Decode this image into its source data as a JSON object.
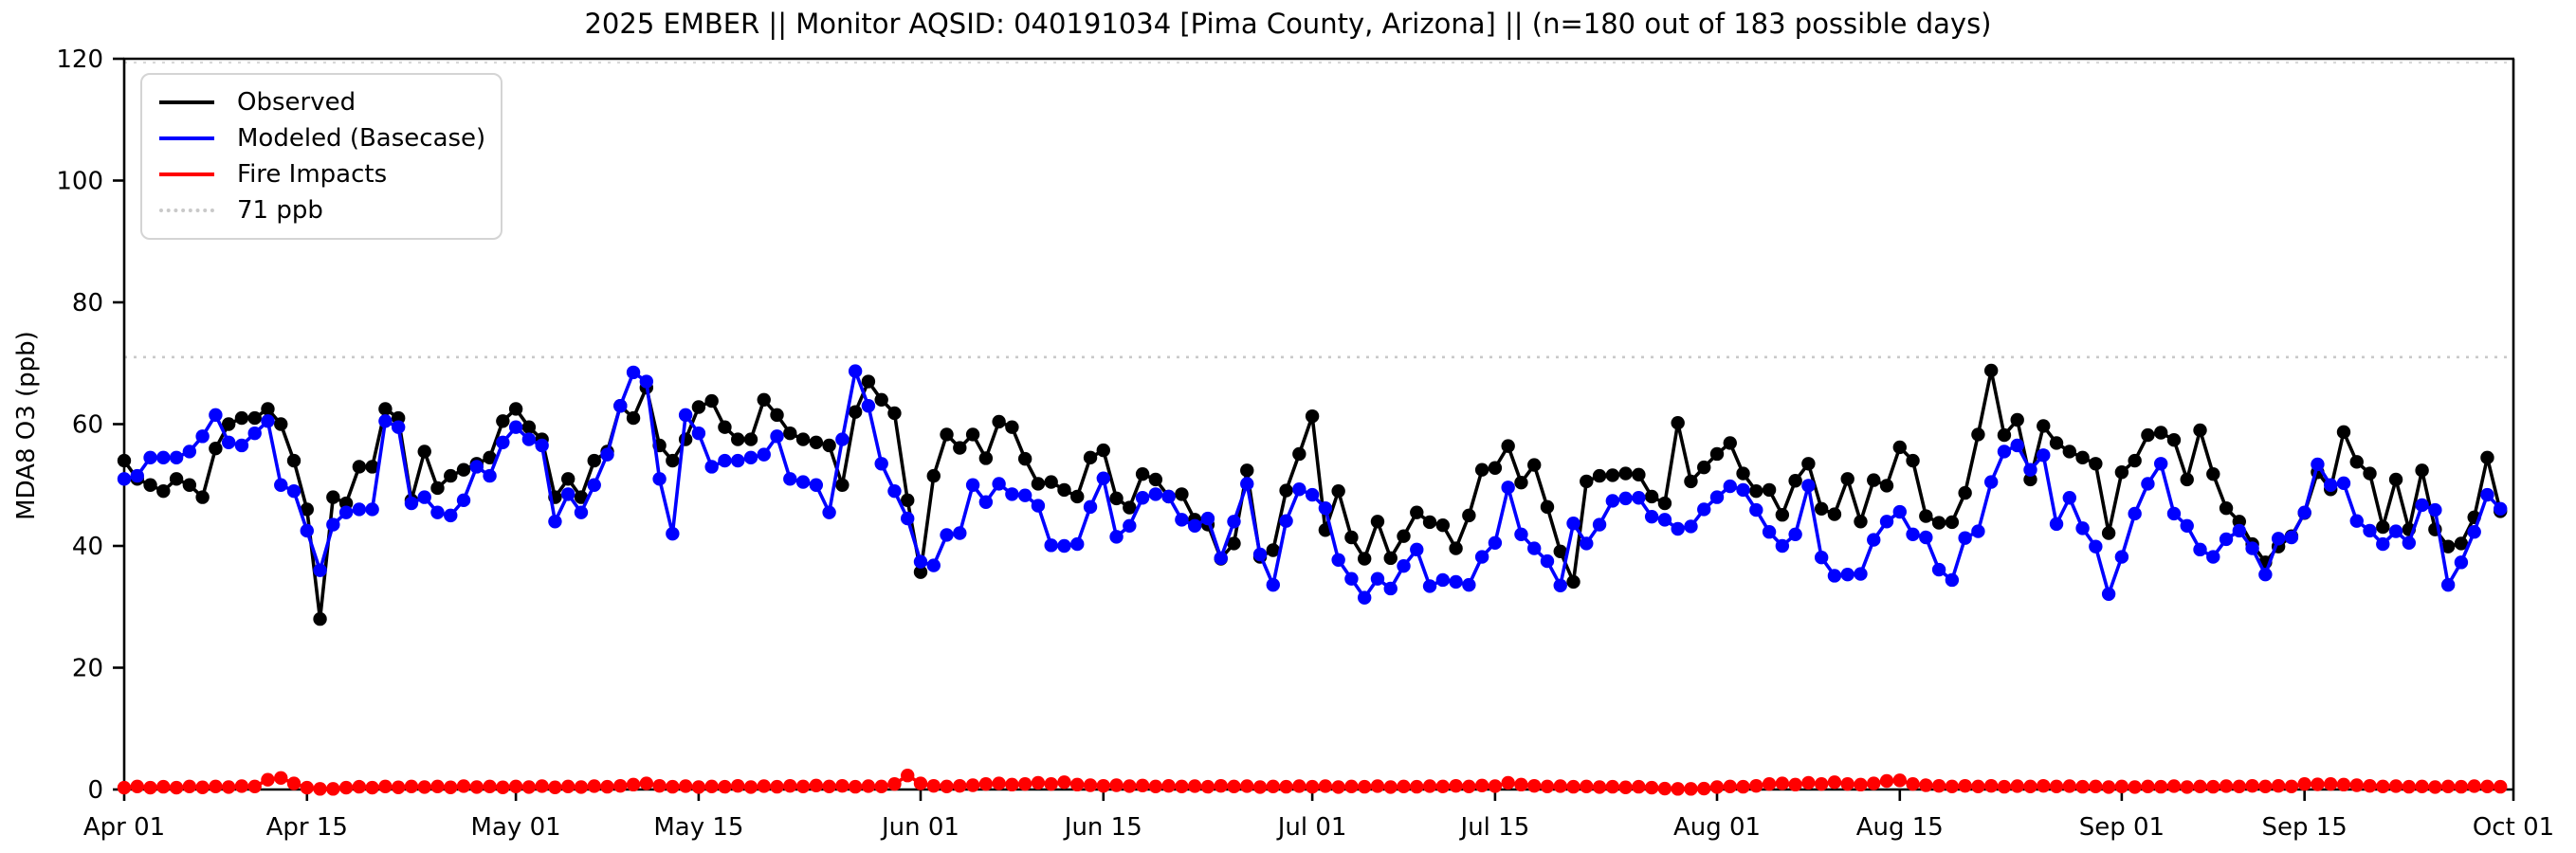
{
  "title": "2025 EMBER || Monitor AQSID: 040191034 [Pima County, Arizona] || (n=180 out of 183 possible days)",
  "legend": {
    "items": [
      {
        "label": "Observed",
        "color": "#000000",
        "style": "solid"
      },
      {
        "label": "Modeled (Basecase)",
        "color": "#0000ff",
        "style": "solid"
      },
      {
        "label": "Fire Impacts",
        "color": "#ff0000",
        "style": "solid"
      },
      {
        "label": "71 ppb",
        "color": "#c9c9c9",
        "style": "dotted"
      }
    ]
  },
  "chart_data": {
    "type": "line",
    "title": "2025 EMBER || Monitor AQSID: 040191034 [Pima County, Arizona] || (n=180 out of 183 possible days)",
    "xlabel": "",
    "ylabel": "MDA8 O3 (ppb)",
    "ylim": [
      0,
      120
    ],
    "y_ticks": [
      0,
      20,
      40,
      60,
      80,
      100,
      120
    ],
    "x_start_date": "Apr 01",
    "x_end_date": "Oct 01",
    "n_days": 183,
    "x_ticks": [
      {
        "label": "Apr 01",
        "day": 0
      },
      {
        "label": "Apr 15",
        "day": 14
      },
      {
        "label": "May 01",
        "day": 30
      },
      {
        "label": "May 15",
        "day": 44
      },
      {
        "label": "Jun 01",
        "day": 61
      },
      {
        "label": "Jun 15",
        "day": 75
      },
      {
        "label": "Jul 01",
        "day": 91
      },
      {
        "label": "Jul 15",
        "day": 105
      },
      {
        "label": "Aug 01",
        "day": 122
      },
      {
        "label": "Aug 15",
        "day": 136
      },
      {
        "label": "Sep 01",
        "day": 153
      },
      {
        "label": "Sep 15",
        "day": 167
      },
      {
        "label": "Oct 01",
        "day": 183
      }
    ],
    "reference_line": {
      "label": "71 ppb",
      "value": 71,
      "color": "#c9c9c9",
      "style": "dotted"
    },
    "grid": false,
    "legend_position": "upper left",
    "series": [
      {
        "name": "Observed",
        "color": "#000000",
        "marker": "circle",
        "values": [
          54,
          51,
          50,
          49,
          51,
          50,
          48,
          56,
          60,
          61,
          61,
          62.5,
          60,
          54,
          46,
          28,
          48,
          47,
          53,
          53,
          62.5,
          61,
          47.5,
          55.5,
          49.5,
          51.5,
          52.5,
          53.5,
          54.5,
          60.5,
          62.5,
          59.5,
          57.5,
          48,
          51,
          48,
          54,
          55.5,
          63,
          61,
          66,
          56.5,
          54,
          57.5,
          62.8,
          63.8,
          59.5,
          57.5,
          57.5,
          64,
          61.5,
          58.5,
          57.5,
          57,
          56.5,
          50,
          62,
          67,
          64,
          61.8,
          47.5,
          35.7,
          51.5,
          58.3,
          56.1,
          58.3,
          54.4,
          60.4,
          59.5,
          54.3,
          50.2,
          50.5,
          49.2,
          48.1,
          54.5,
          55.7,
          47.8,
          46.3,
          51.8,
          50.9,
          48.1,
          48.5,
          44.3,
          43.5,
          37.9,
          40.4,
          52.4,
          38.2,
          39.3,
          49.1,
          55.1,
          61.3,
          42.6,
          49,
          41.4,
          37.9,
          44,
          38,
          41.6,
          45.5,
          43.9,
          43.4,
          39.6,
          45,
          52.5,
          52.8,
          56.4,
          50.4,
          53.3,
          46.4,
          39.1,
          34.1,
          50.6,
          51.5,
          51.6,
          51.9,
          51.7,
          48.1,
          47,
          60.2,
          50.6,
          52.9,
          55.1,
          56.9,
          51.9,
          49,
          49.2,
          45.1,
          50.7,
          53.5,
          46.1,
          45.2,
          51,
          44,
          50.8,
          49.9,
          56.2,
          54,
          44.9,
          43.8,
          43.9,
          48.7,
          58.3,
          68.8,
          58.2,
          60.7,
          50.9,
          59.7,
          56.9,
          55.5,
          54.5,
          53.5,
          42.1,
          52.1,
          54,
          58.2,
          58.6,
          57.4,
          50.9,
          59,
          51.8,
          46.2,
          44,
          40.3,
          37.3,
          39.9,
          41.6,
          45.4,
          52.1,
          49.3,
          58.7,
          53.8,
          51.9,
          43.1,
          50.9,
          42.7,
          52.4,
          42.7,
          39.9,
          40.4,
          44.7,
          54.5,
          45.7
        ]
      },
      {
        "name": "Modeled (Basecase)",
        "color": "#0000ff",
        "marker": "circle",
        "values": [
          51,
          51.5,
          54.5,
          54.5,
          54.5,
          55.5,
          58,
          61.5,
          57,
          56.5,
          58.5,
          60.5,
          50,
          49,
          42.5,
          36,
          43.5,
          45.5,
          46,
          46,
          60.5,
          59.5,
          47,
          48,
          45.5,
          45,
          47.5,
          53,
          51.5,
          57,
          59.5,
          57.5,
          56.5,
          44,
          48.5,
          45.5,
          50,
          55,
          63,
          68.5,
          67,
          51,
          42,
          61.5,
          58.5,
          53,
          54,
          54,
          54.5,
          55,
          58,
          51,
          50.5,
          50,
          45.5,
          57.5,
          68.7,
          63,
          53.5,
          49,
          44.5,
          37.4,
          36.8,
          41.8,
          42.1,
          50,
          47.2,
          50.2,
          48.5,
          48.3,
          46.6,
          40.1,
          40,
          40.3,
          46.4,
          51.1,
          41.5,
          43.3,
          47.9,
          48.5,
          48.1,
          44.3,
          43.3,
          44.5,
          38,
          44,
          50.2,
          38.6,
          33.6,
          44.1,
          49.3,
          48.4,
          46.2,
          37.7,
          34.6,
          31.5,
          34.6,
          33,
          36.7,
          39.4,
          33.4,
          34.4,
          34.1,
          33.6,
          38.2,
          40.5,
          49.6,
          41.9,
          39.6,
          37.5,
          33.5,
          43.7,
          40.4,
          43.5,
          47.4,
          47.8,
          47.9,
          44.8,
          44.3,
          42.8,
          43.2,
          46,
          48,
          49.8,
          49.2,
          45.9,
          42.3,
          40,
          41.9,
          49.9,
          38.1,
          35.1,
          35.3,
          35.4,
          41,
          44,
          45.6,
          41.9,
          41.4,
          36.1,
          34.4,
          41.3,
          42.4,
          50.5,
          55.5,
          56.5,
          52.5,
          54.9,
          43.6,
          47.9,
          42.9,
          39.9,
          32.1,
          38.2,
          45.3,
          50.2,
          53.5,
          45.3,
          43.3,
          39.4,
          38.2,
          41.1,
          42.5,
          39.6,
          35.3,
          41.2,
          41.4,
          45.5,
          53.4,
          50,
          50.3,
          44.1,
          42.5,
          40.3,
          42.4,
          40.5,
          46.7,
          45.9,
          33.6,
          37.3,
          42.3,
          48.4,
          46.1
        ]
      },
      {
        "name": "Fire Impacts",
        "color": "#ff0000",
        "marker": "circle",
        "values": [
          0.3,
          0.5,
          0.3,
          0.45,
          0.3,
          0.5,
          0.35,
          0.5,
          0.4,
          0.55,
          0.5,
          1.6,
          1.9,
          1.0,
          0.3,
          0.1,
          0.1,
          0.3,
          0.45,
          0.3,
          0.5,
          0.35,
          0.5,
          0.4,
          0.5,
          0.35,
          0.55,
          0.4,
          0.5,
          0.35,
          0.5,
          0.4,
          0.55,
          0.35,
          0.5,
          0.4,
          0.55,
          0.45,
          0.6,
          0.8,
          1.0,
          0.6,
          0.45,
          0.55,
          0.4,
          0.5,
          0.45,
          0.6,
          0.4,
          0.55,
          0.45,
          0.6,
          0.5,
          0.65,
          0.5,
          0.6,
          0.45,
          0.55,
          0.5,
          0.9,
          2.3,
          1.0,
          0.6,
          0.5,
          0.6,
          0.7,
          0.9,
          1.0,
          0.8,
          0.9,
          1.1,
          0.9,
          1.2,
          0.8,
          0.7,
          0.6,
          0.7,
          0.55,
          0.65,
          0.5,
          0.6,
          0.5,
          0.55,
          0.45,
          0.6,
          0.5,
          0.55,
          0.4,
          0.5,
          0.45,
          0.55,
          0.45,
          0.55,
          0.4,
          0.5,
          0.45,
          0.55,
          0.4,
          0.5,
          0.45,
          0.55,
          0.5,
          0.6,
          0.5,
          0.65,
          0.55,
          1.1,
          0.8,
          0.6,
          0.5,
          0.55,
          0.45,
          0.5,
          0.4,
          0.45,
          0.35,
          0.45,
          0.3,
          0.15,
          0.1,
          0.1,
          0.15,
          0.4,
          0.5,
          0.45,
          0.6,
          0.9,
          1.0,
          0.8,
          1.1,
          0.9,
          1.2,
          0.9,
          0.8,
          1.0,
          1.4,
          1.5,
          0.9,
          0.7,
          0.6,
          0.5,
          0.6,
          0.5,
          0.6,
          0.45,
          0.55,
          0.5,
          0.6,
          0.5,
          0.55,
          0.45,
          0.5,
          0.4,
          0.5,
          0.4,
          0.5,
          0.45,
          0.55,
          0.4,
          0.5,
          0.45,
          0.55,
          0.5,
          0.6,
          0.5,
          0.6,
          0.5,
          0.9,
          0.85,
          0.9,
          0.8,
          0.7,
          0.6,
          0.5,
          0.55,
          0.45,
          0.5,
          0.4,
          0.5,
          0.45,
          0.55,
          0.5,
          0.45
        ]
      }
    ]
  }
}
